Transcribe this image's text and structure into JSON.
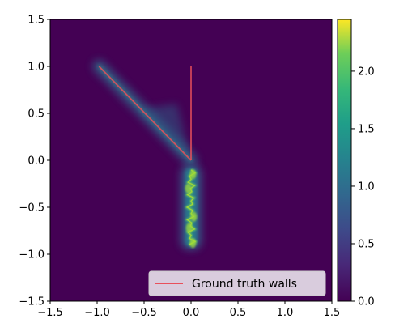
{
  "chart_data": {
    "type": "heatmap",
    "title": "",
    "xlabel": "",
    "ylabel": "",
    "xlim": [
      -1.5,
      1.5
    ],
    "ylim": [
      -1.5,
      1.5
    ],
    "xticks": [
      "−1.5",
      "−1.0",
      "−0.5",
      "0.0",
      "0.5",
      "1.0",
      "1.5"
    ],
    "yticks": [
      "−1.5",
      "−1.0",
      "−0.5",
      "0.0",
      "0.5",
      "1.0",
      "1.5"
    ],
    "colormap": "viridis",
    "colorbar": {
      "range": [
        0.0,
        2.45
      ],
      "ticks": [
        "0.0",
        "0.5",
        "1.0",
        "1.5",
        "2.0"
      ]
    },
    "series": [
      {
        "name": "Ground truth walls",
        "type": "line",
        "color": "#e8505b",
        "segments": [
          [
            [
              -0.98,
              1.0
            ],
            [
              0.0,
              0.0
            ]
          ],
          [
            [
              0.0,
              1.0
            ],
            [
              0.0,
              0.0
            ]
          ]
        ]
      }
    ],
    "heat_features": [
      {
        "x": [
          -0.98,
          0.0
        ],
        "y": [
          1.0,
          0.0
        ],
        "intensity": 0.4
      },
      {
        "x": [
          0.0,
          0.0
        ],
        "y": [
          -0.05,
          -0.95
        ],
        "intensity": 1.0
      }
    ],
    "legend": {
      "position": "lower right",
      "entries": [
        "Ground truth walls"
      ]
    },
    "grid": false
  }
}
